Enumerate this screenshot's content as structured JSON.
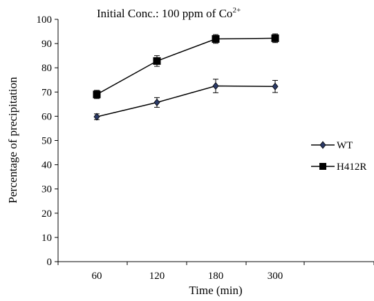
{
  "chart_data": {
    "type": "line",
    "title": "Initial Conc.: 100 ppm of Co",
    "title_superscript": "2+",
    "xlabel": "Time (min)",
    "ylabel": "Percentage of precipitation",
    "categories": [
      "60",
      "120",
      "180",
      "300"
    ],
    "ylim": [
      0,
      100
    ],
    "yticks": [
      0,
      10,
      20,
      30,
      40,
      50,
      60,
      70,
      80,
      90,
      100
    ],
    "grid": false,
    "legend_position": "right",
    "series": [
      {
        "name": "WT",
        "marker": "diamond",
        "values": [
          59.8,
          65.7,
          72.5,
          72.3
        ],
        "errors": [
          1.2,
          2.0,
          2.8,
          2.5
        ],
        "color": "#000000",
        "marker_color": "#2b3a67"
      },
      {
        "name": "H412R",
        "marker": "square",
        "values": [
          69.0,
          82.8,
          91.9,
          92.2
        ],
        "errors": [
          1.7,
          2.2,
          1.8,
          1.8
        ],
        "color": "#000000",
        "marker_color": "#000000"
      }
    ]
  }
}
